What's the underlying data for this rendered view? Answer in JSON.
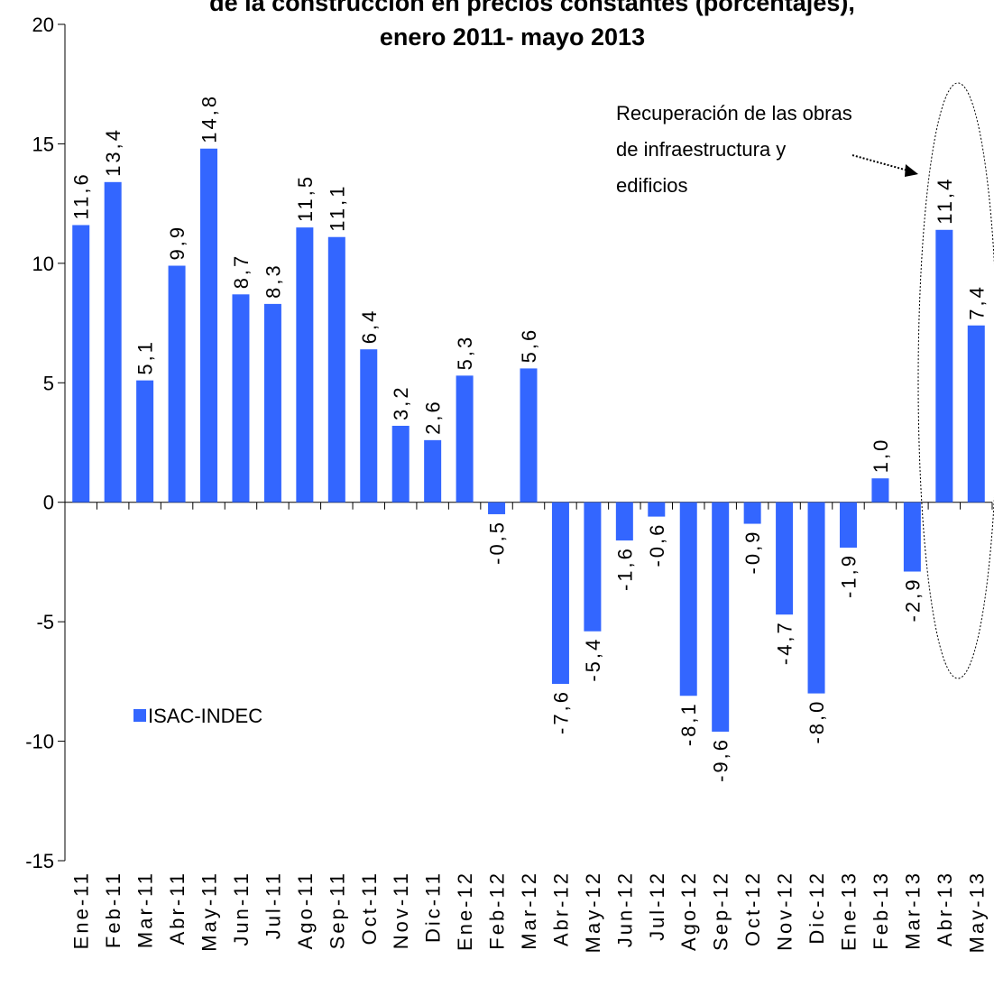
{
  "chart_data": {
    "type": "bar",
    "title": [
      "de la construcción en precios constantes (porcentajes),",
      "enero 2011- mayo 2013"
    ],
    "categories": [
      "Ene-11",
      "Feb-11",
      "Mar-11",
      "Abr-11",
      "May-11",
      "Jun-11",
      "Jul-11",
      "Ago-11",
      "Sep-11",
      "Oct-11",
      "Nov-11",
      "Dic-11",
      "Ene-12",
      "Feb-12",
      "Mar-12",
      "Abr-12",
      "May-12",
      "Jun-12",
      "Jul-12",
      "Ago-12",
      "Sep-12",
      "Oct-12",
      "Nov-12",
      "Dic-12",
      "Ene-13",
      "Feb-13",
      "Mar-13",
      "Abr-13",
      "May-13"
    ],
    "series": [
      {
        "name": "ISAC-INDEC",
        "color": "#3366ff",
        "values": [
          11.6,
          13.4,
          5.1,
          9.9,
          14.8,
          8.7,
          8.3,
          11.5,
          11.1,
          6.4,
          3.2,
          2.6,
          5.3,
          -0.5,
          5.6,
          -7.6,
          -5.4,
          -1.6,
          -0.6,
          -8.1,
          -9.6,
          -0.9,
          -4.7,
          -8.0,
          -1.9,
          1.0,
          -2.9,
          11.4,
          7.4
        ],
        "value_labels": [
          "11,6",
          "13,4",
          "5,1",
          "9,9",
          "14,8",
          "8,7",
          "8,3",
          "11,5",
          "11,1",
          "6,4",
          "3,2",
          "2,6",
          "5,3",
          "-0,5",
          "5,6",
          "-7,6",
          "-5,4",
          "-1,6",
          "-0,6",
          "-8,1",
          "-9,6",
          "-0,9",
          "-4,7",
          "-8,0",
          "-1,9",
          "1,0",
          "-2,9",
          "11,4",
          "7,4"
        ]
      }
    ],
    "ylim": [
      -15,
      20
    ],
    "yticks": [
      -15,
      -10,
      -5,
      0,
      5,
      10,
      15,
      20
    ],
    "annotation": [
      "Recuperación de las obras",
      "de infraestructura y",
      "edificios"
    ]
  }
}
